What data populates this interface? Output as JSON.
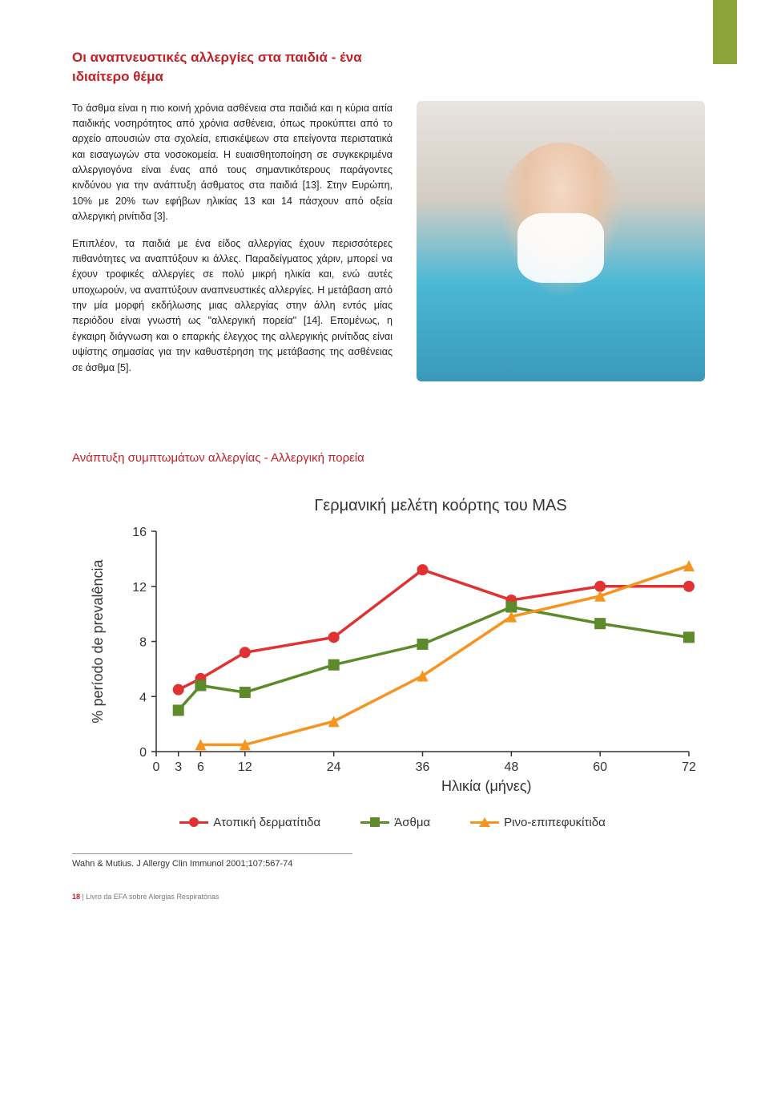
{
  "heading": "Οι αναπνευστικές αλλεργίες στα παιδιά - ένα ιδιαίτερο θέμα",
  "para1": "Το άσθμα είναι η πιο κοινή χρόνια ασθένεια στα παιδιά και η κύρια αιτία παιδικής νοσηρότητος από χρόνια ασθένεια, όπως προκύπτει από το αρχείο απουσιών στα σχολεία, επισκέψεων στα επείγοντα περιστατικά και εισαγωγών στα νοσοκομεία. Η ευαισθητοποίηση σε συγκεκριμένα αλλεργιογόνα είναι ένας από τους σημαντικότερους παράγοντες κινδύνου για την ανάπτυξη άσθματος στα παιδιά [13]. Στην Ευρώπη, 10% με 20% των εφήβων ηλικίας 13 και 14 πάσχουν από οξεία αλλεργική ρινίτιδα [3].",
  "para2": "Επιπλέον, τα παιδιά με ένα είδος αλλεργίας έχουν περισσότερες πιθανότητες να αναπτύξουν κι άλλες. Παραδείγματος χάριν, μπορεί να έχουν τροφικές αλλεργίες σε πολύ μικρή ηλικία και, ενώ αυτές υποχωρούν, να αναπτύξουν αναπνευστικές αλλεργίες. Η μετάβαση από την μία μορφή εκδήλωσης μιας αλλεργίας στην άλλη εντός μίας περιόδου είναι γνωστή ως \"αλλεργική πορεία\" [14]. Επομένως, η έγκαιρη διάγνωση και ο επαρκής έλεγχος της αλλεργικής ρινίτιδας είναι υψίστης σημασίας για την καθυστέρηση της μετάβασης της ασθένειας σε άσθμα [5].",
  "subheading": "Ανάπτυξη συμπτωμάτων αλλεργίας - Αλλεργική πορεία",
  "chart": {
    "type": "line",
    "title": "Γερμανική μελέτη κοόρτης του MAS",
    "ylabel": "% período de prevalência",
    "xlabel": "Ηλικία (μήνες)",
    "ylim": [
      0,
      16
    ],
    "ytick_step": 4,
    "xticks": [
      0,
      3,
      6,
      12,
      24,
      36,
      48,
      60,
      72
    ],
    "series": [
      {
        "name": "Ατοπική δερματίτιδα",
        "color": "#e03232",
        "marker": "circle",
        "x": [
          3,
          6,
          12,
          24,
          36,
          48,
          60,
          72
        ],
        "y": [
          4.5,
          5.3,
          7.2,
          8.3,
          13.2,
          11.0,
          12.0,
          12.0
        ]
      },
      {
        "name": "Άσθμα",
        "color": "#5d8a2a",
        "marker": "square",
        "x": [
          3,
          6,
          12,
          24,
          36,
          48,
          60,
          72
        ],
        "y": [
          3.0,
          4.8,
          4.3,
          6.3,
          7.8,
          10.5,
          9.3,
          8.3
        ]
      },
      {
        "name": "Ρινο-επιπεφυκίτιδα",
        "color": "#f5951f",
        "marker": "triangle",
        "x": [
          6,
          12,
          24,
          36,
          48,
          60,
          72
        ],
        "y": [
          0.5,
          0.5,
          2.2,
          5.5,
          9.8,
          11.3,
          13.5
        ]
      }
    ],
    "background_color": "#ffffff",
    "axis_color": "#333333",
    "title_fontsize": 20,
    "label_fontsize": 18,
    "tick_fontsize": 16,
    "line_width": 3.5,
    "marker_size": 7
  },
  "legend": {
    "items": [
      "Ατοπική δερματίτιδα",
      "Άσθμα",
      "Ρινο-επιπεφυκίτιδα"
    ]
  },
  "citation": "Wahn & Mutius. J Allergy Clin Immunol 2001;107:567-74",
  "footer": {
    "page": "18",
    "text": "Livro da EFA sobre Alergias Respiratórias"
  }
}
